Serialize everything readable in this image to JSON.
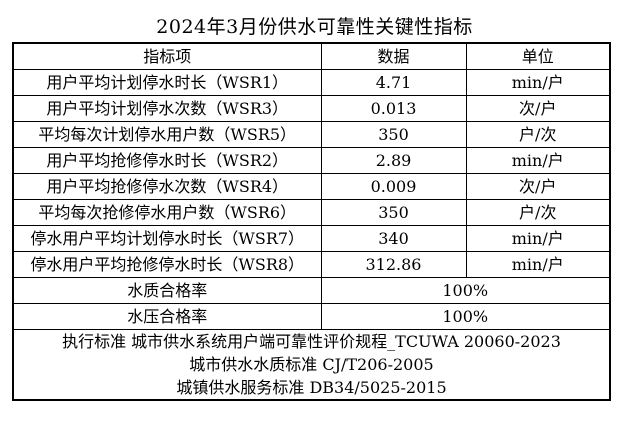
{
  "title": "2024年3月份供水可靠性关键性指标",
  "colors": {
    "background": "#ffffff",
    "text": "#000000",
    "border": "#000000"
  },
  "table": {
    "headers": [
      "指标项",
      "数据",
      "单位"
    ],
    "rows": [
      {
        "label": "用户平均计划停水时长（WSR1）",
        "value": "4.71",
        "unit": "min/户"
      },
      {
        "label": "用户平均计划停水次数（WSR3）",
        "value": "0.013",
        "unit": "次/户"
      },
      {
        "label": "平均每次计划停水用户数（WSR5）",
        "value": "350",
        "unit": "户/次"
      },
      {
        "label": "用户平均抢修停水时长（WSR2）",
        "value": "2.89",
        "unit": "min/户"
      },
      {
        "label": "用户平均抢修停水次数（WSR4）",
        "value": "0.009",
        "unit": "次/户"
      },
      {
        "label": "平均每次抢修停水用户数（WSR6）",
        "value": "350",
        "unit": "户/次"
      },
      {
        "label": "停水用户平均计划停水时长（WSR7）",
        "value": "340",
        "unit": "min/户"
      },
      {
        "label": "停水用户平均抢修停水时长（WSR8）",
        "value": "312.86",
        "unit": "min/户"
      }
    ],
    "rate_rows": [
      {
        "label": "水质合格率",
        "value": "100%"
      },
      {
        "label": "水压合格率",
        "value": "100%"
      }
    ],
    "footer_lines": [
      "执行标准 城市供水系统用户端可靠性评价规程_TCUWA 20060-2023",
      "城市供水水质标准 CJ/T206-2005",
      "城镇供水服务标准 DB34/5025-2015"
    ]
  }
}
